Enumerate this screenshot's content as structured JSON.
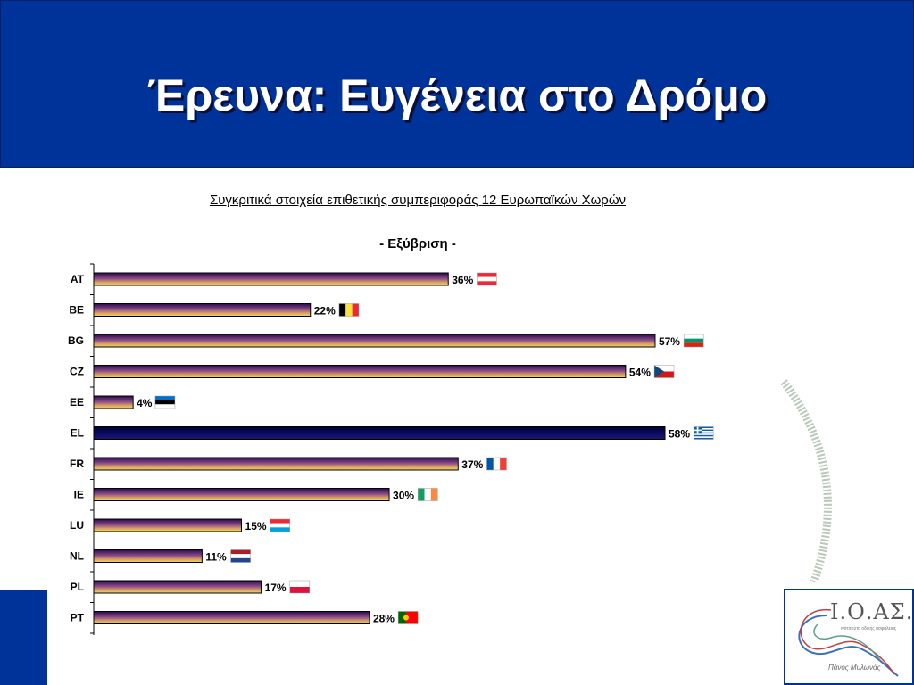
{
  "slide": {
    "title": "Έρευνα: Ευγένεια στο Δρόμο",
    "colors": {
      "header": "#003399",
      "bar": "#f2c94c",
      "bar_highlight": "#0a0a50"
    }
  },
  "logo": {
    "name": "Ι.Ο.ΑΣ.",
    "subtitle": "ινστιτούτο οδικής ασφάλειας",
    "signature": "Πάνος Μυλωνάς"
  },
  "chart_data": {
    "type": "bar",
    "orientation": "horizontal",
    "title": "Συγκριτικά στοιχεία επιθετικής συμπεριφοράς 12 Ευρωπαϊκών Χωρών",
    "subtitle": "- Εξύβριση -",
    "categories": [
      "AT",
      "BE",
      "BG",
      "CZ",
      "EE",
      "EL",
      "FR",
      "IE",
      "LU",
      "NL",
      "PL",
      "PT"
    ],
    "values": [
      36,
      22,
      57,
      54,
      4,
      58,
      37,
      30,
      15,
      11,
      17,
      28
    ],
    "data_labels": [
      "36%",
      "22%",
      "57%",
      "54%",
      "4%",
      "58%",
      "37%",
      "30%",
      "15%",
      "11%",
      "17%",
      "28%"
    ],
    "highlight": "EL",
    "xlim": [
      0,
      60
    ],
    "flags": [
      "austria-flag-icon",
      "belgium-flag-icon",
      "bulgaria-flag-icon",
      "czech-flag-icon",
      "estonia-flag-icon",
      "greece-flag-icon",
      "france-flag-icon",
      "ireland-flag-icon",
      "luxembourg-flag-icon",
      "netherlands-flag-icon",
      "poland-flag-icon",
      "portugal-flag-icon"
    ]
  }
}
